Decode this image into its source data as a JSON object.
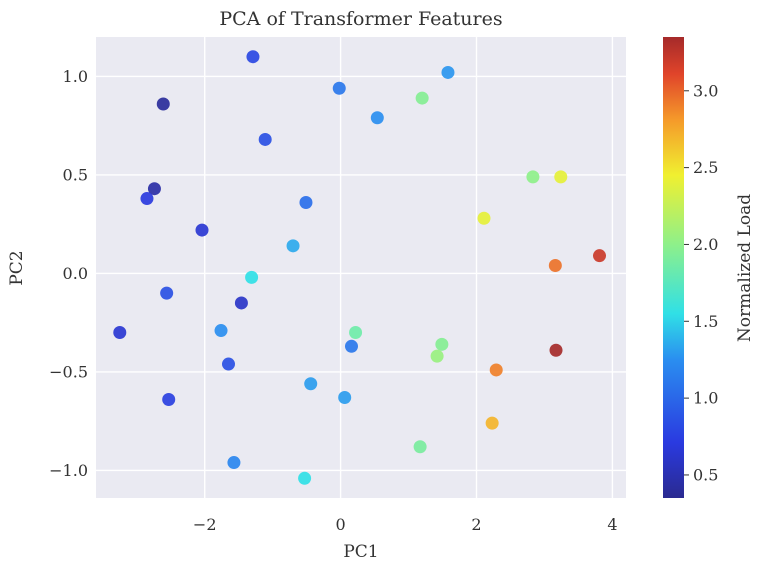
{
  "chart_data": {
    "type": "scatter",
    "title": "PCA of Transformer Features",
    "xlabel": "PC1",
    "ylabel": "PC2",
    "xlim": [
      -3.6,
      4.2
    ],
    "ylim": [
      -1.14,
      1.2
    ],
    "xticks": [
      -2,
      0,
      2,
      4
    ],
    "xtick_labels": [
      "−2",
      "0",
      "2",
      "4"
    ],
    "yticks": [
      -1.0,
      -0.5,
      0.0,
      0.5,
      1.0
    ],
    "ytick_labels": [
      "−1.0",
      "−0.5",
      "0.0",
      "0.5",
      "1.0"
    ],
    "grid": true,
    "colormap": "jet",
    "colorbar": {
      "label": "Normalized Load",
      "range": [
        0.35,
        3.35
      ],
      "ticks": [
        0.5,
        1.0,
        1.5,
        2.0,
        2.5,
        3.0
      ],
      "tick_labels": [
        "0.5",
        "1.0",
        "1.5",
        "2.0",
        "2.5",
        "3.0"
      ]
    },
    "points": [
      {
        "x": -1.29,
        "y": 1.1,
        "c": 0.8
      },
      {
        "x": -2.61,
        "y": 0.86,
        "c": 0.4
      },
      {
        "x": -0.02,
        "y": 0.94,
        "c": 1.1
      },
      {
        "x": 1.58,
        "y": 1.02,
        "c": 1.28
      },
      {
        "x": 1.2,
        "y": 0.89,
        "c": 1.95
      },
      {
        "x": 0.54,
        "y": 0.79,
        "c": 1.25
      },
      {
        "x": -1.11,
        "y": 0.68,
        "c": 0.85
      },
      {
        "x": -2.74,
        "y": 0.43,
        "c": 0.45
      },
      {
        "x": -2.85,
        "y": 0.38,
        "c": 0.7
      },
      {
        "x": -0.51,
        "y": 0.36,
        "c": 1.05
      },
      {
        "x": -2.04,
        "y": 0.22,
        "c": 0.65
      },
      {
        "x": -0.7,
        "y": 0.14,
        "c": 1.35
      },
      {
        "x": -1.31,
        "y": -0.02,
        "c": 1.55
      },
      {
        "x": -2.56,
        "y": -0.1,
        "c": 0.85
      },
      {
        "x": -1.46,
        "y": -0.15,
        "c": 0.6
      },
      {
        "x": -3.25,
        "y": -0.3,
        "c": 0.65
      },
      {
        "x": -1.76,
        "y": -0.29,
        "c": 1.25
      },
      {
        "x": 0.22,
        "y": -0.3,
        "c": 1.85
      },
      {
        "x": 0.16,
        "y": -0.37,
        "c": 1.1
      },
      {
        "x": 1.49,
        "y": -0.36,
        "c": 1.95
      },
      {
        "x": 1.42,
        "y": -0.42,
        "c": 2.05
      },
      {
        "x": -1.65,
        "y": -0.46,
        "c": 0.85
      },
      {
        "x": -0.44,
        "y": -0.56,
        "c": 1.3
      },
      {
        "x": 0.06,
        "y": -0.63,
        "c": 1.3
      },
      {
        "x": -2.53,
        "y": -0.64,
        "c": 0.75
      },
      {
        "x": -1.57,
        "y": -0.96,
        "c": 1.2
      },
      {
        "x": -0.53,
        "y": -1.04,
        "c": 1.55
      },
      {
        "x": 1.17,
        "y": -0.88,
        "c": 1.9
      },
      {
        "x": 2.23,
        "y": -0.76,
        "c": 2.7
      },
      {
        "x": 2.29,
        "y": -0.49,
        "c": 2.9
      },
      {
        "x": 3.17,
        "y": -0.39,
        "c": 3.35
      },
      {
        "x": 2.83,
        "y": 0.49,
        "c": 2.0
      },
      {
        "x": 3.24,
        "y": 0.49,
        "c": 2.4
      },
      {
        "x": 2.11,
        "y": 0.28,
        "c": 2.4
      },
      {
        "x": 3.16,
        "y": 0.04,
        "c": 2.95
      },
      {
        "x": 3.81,
        "y": 0.09,
        "c": 3.2
      }
    ]
  }
}
